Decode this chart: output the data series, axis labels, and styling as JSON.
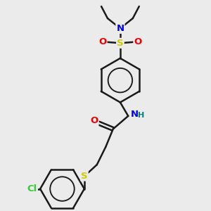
{
  "bg_color": "#ebebeb",
  "bond_color": "#1a1a1a",
  "lw": 1.8,
  "atom_colors": {
    "N": "#0000ee",
    "O": "#ee0000",
    "S": "#cccc00",
    "Cl": "#33cc33",
    "H": "#008080",
    "C": "#1a1a1a"
  },
  "figsize": [
    3.0,
    3.0
  ],
  "dpi": 100,
  "xlim": [
    0,
    10
  ],
  "ylim": [
    0,
    10
  ]
}
